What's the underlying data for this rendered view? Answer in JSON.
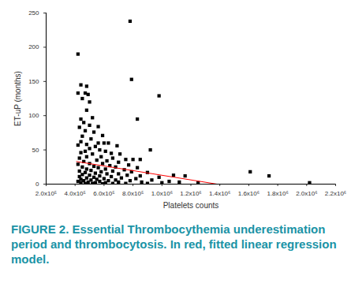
{
  "chart_data": {
    "type": "scatter",
    "caption": "FIGURE 2. Essential Thrombocythemia underestimation period and thrombocytosis. In red, fitted linear regression model.",
    "x_label": "Platelets counts",
    "y_label": "ET-uP (months)",
    "xlim": [
      200000,
      2200000
    ],
    "xticks": [
      {
        "value": 200000,
        "label": "2.0x10⁵"
      },
      {
        "value": 400000,
        "label": "4.0x10⁵"
      },
      {
        "value": 600000,
        "label": "6.0x10⁵"
      },
      {
        "value": 800000,
        "label": "8.0x10⁵"
      },
      {
        "value": 1000000,
        "label": "1.0x10⁶"
      },
      {
        "value": 1200000,
        "label": "1.2x10⁶"
      },
      {
        "value": 1400000,
        "label": "1.4x10⁶"
      },
      {
        "value": 1600000,
        "label": "1.6x10⁶"
      },
      {
        "value": 1800000,
        "label": "1.8x10⁶"
      },
      {
        "value": 2000000,
        "label": "2.0x10⁶"
      },
      {
        "value": 2200000,
        "label": "2.2x10⁶"
      }
    ],
    "ylim": [
      0,
      250
    ],
    "yticks": [
      0,
      50,
      100,
      150,
      200,
      250
    ],
    "grid": false,
    "series": [
      {
        "type": "scatter",
        "marker": "square",
        "color": "#000000",
        "x": [
          440000,
          480000,
          420000,
          470000,
          450000,
          500000,
          490000,
          480000,
          520000,
          440000,
          460000,
          500000,
          430000,
          560000,
          470000,
          530000,
          450000,
          590000,
          510000,
          440000,
          600000,
          560000,
          480000,
          630000,
          420000,
          540000,
          690000,
          500000,
          470000,
          570000,
          610000,
          440000,
          650000,
          520000,
          710000,
          480000,
          580000,
          430000,
          660000,
          750000,
          800000,
          550000,
          620000,
          460000,
          700000,
          500000,
          590000,
          420000,
          770000,
          640000,
          530000,
          450000,
          680000,
          560000,
          830000,
          480000,
          610000,
          740000,
          510000,
          430000,
          660000,
          580000,
          790000,
          470000,
          900000,
          540000,
          700000,
          620000,
          450000,
          500000,
          760000,
          850000,
          570000,
          430000,
          650000,
          530000,
          980000,
          480000,
          720000,
          600000,
          820000,
          440000,
          550000,
          680000,
          510000,
          930000,
          460000,
          630000,
          780000,
          420000,
          570000,
          1050000,
          490000,
          700000,
          860000,
          540000,
          610000,
          440000,
          750000,
          1000000,
          1120000,
          1250000,
          520000,
          660000,
          470000,
          590000,
          900000,
          780000,
          420000,
          790000,
          980000,
          830000,
          920000,
          850000,
          1080000,
          1160000,
          1610000,
          1740000,
          2020000
        ],
        "values": [
          145,
          143,
          133,
          133,
          125,
          120,
          131,
          108,
          97,
          95,
          90,
          86,
          83,
          84,
          78,
          76,
          70,
          71,
          66,
          62,
          60,
          60,
          58,
          60,
          57,
          55,
          56,
          52,
          48,
          50,
          48,
          46,
          45,
          44,
          44,
          40,
          40,
          38,
          38,
          36,
          36,
          35,
          34,
          33,
          32,
          30,
          30,
          29,
          28,
          27,
          26,
          25,
          25,
          24,
          24,
          22,
          22,
          21,
          20,
          19,
          19,
          18,
          18,
          17,
          17,
          16,
          15,
          15,
          14,
          13,
          13,
          12,
          12,
          11,
          11,
          10,
          10,
          9,
          9,
          8,
          8,
          7,
          7,
          6,
          6,
          6,
          5,
          5,
          5,
          4,
          4,
          4,
          3,
          3,
          3,
          2,
          2,
          2,
          1,
          2,
          3,
          2,
          1,
          1,
          0.5,
          0.5,
          1,
          238,
          190,
          153,
          129,
          95,
          50,
          36,
          13,
          12,
          18,
          12,
          2
        ]
      },
      {
        "type": "line",
        "line_style": "solid",
        "color": "#ff0000",
        "x": [
          410000,
          1380000
        ],
        "values": [
          33,
          0
        ]
      }
    ]
  }
}
